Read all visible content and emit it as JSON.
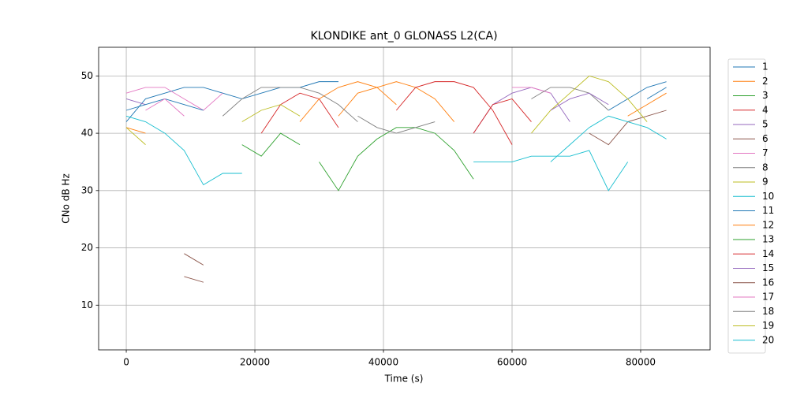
{
  "chart_data": {
    "type": "line",
    "title": "KLONDIKE ant_0 GLONASS L2(CA)",
    "x_label": "Time (s)",
    "y_label": "CNo dB Hz",
    "x": [
      0,
      3000,
      6000,
      9000,
      12000,
      15000,
      18000,
      21000,
      24000,
      27000,
      30000,
      33000,
      36000,
      39000,
      42000,
      45000,
      48000,
      51000,
      54000,
      57000,
      60000,
      63000,
      66000,
      69000,
      72000,
      75000,
      78000,
      81000,
      84000
    ],
    "xlim": [
      -4300,
      90800
    ],
    "xticks": [
      0,
      20000,
      40000,
      60000,
      80000
    ],
    "ylim": [
      2.2,
      55
    ],
    "yticks": [
      10,
      20,
      30,
      40,
      50
    ],
    "grid": true,
    "legend": "outside right",
    "series": [
      {
        "name": "1",
        "color": "#1f77b4",
        "values": [
          42,
          46,
          47,
          48,
          48,
          47,
          46,
          47,
          48,
          48,
          49,
          49,
          null,
          null,
          null,
          null,
          null,
          null,
          null,
          null,
          null,
          null,
          null,
          null,
          null,
          44,
          46,
          48,
          49
        ]
      },
      {
        "name": "2",
        "color": "#ff7f0e",
        "values": [
          41,
          40,
          null,
          null,
          null,
          null,
          null,
          null,
          null,
          null,
          null,
          43,
          47,
          48,
          49,
          48,
          46,
          42,
          null,
          null,
          null,
          null,
          null,
          null,
          null,
          null,
          43,
          45,
          47
        ]
      },
      {
        "name": "3",
        "color": "#2ca02c",
        "values": [
          null,
          null,
          null,
          null,
          null,
          null,
          null,
          null,
          null,
          null,
          35,
          30,
          36,
          39,
          41,
          41,
          40,
          37,
          32,
          null,
          null,
          null,
          null,
          null,
          null,
          null,
          null,
          null,
          null
        ]
      },
      {
        "name": "4",
        "color": "#d62728",
        "values": [
          null,
          null,
          null,
          null,
          null,
          null,
          null,
          40,
          45,
          47,
          46,
          41,
          null,
          null,
          44,
          48,
          49,
          49,
          48,
          44,
          38,
          null,
          null,
          null,
          null,
          null,
          null,
          null,
          null
        ]
      },
      {
        "name": "5",
        "color": "#9467bd",
        "values": [
          46,
          45,
          null,
          null,
          null,
          null,
          null,
          null,
          null,
          null,
          null,
          null,
          null,
          null,
          null,
          null,
          null,
          null,
          40,
          45,
          47,
          48,
          47,
          42,
          null,
          null,
          null,
          null,
          null
        ]
      },
      {
        "name": "6",
        "color": "#8c564b",
        "values": [
          null,
          null,
          null,
          15,
          14,
          null,
          null,
          null,
          null,
          null,
          null,
          null,
          null,
          null,
          null,
          null,
          null,
          null,
          null,
          null,
          null,
          null,
          null,
          null,
          40,
          38,
          42,
          43,
          44
        ]
      },
      {
        "name": "7",
        "color": "#e377c2",
        "values": [
          47,
          48,
          48,
          46,
          44,
          47,
          null,
          null,
          null,
          null,
          null,
          null,
          null,
          null,
          null,
          null,
          null,
          null,
          null,
          null,
          48,
          48,
          47,
          null,
          null,
          null,
          null,
          null,
          null
        ]
      },
      {
        "name": "8",
        "color": "#7f7f7f",
        "values": [
          null,
          null,
          null,
          null,
          null,
          43,
          46,
          48,
          48,
          48,
          47,
          45,
          42,
          null,
          null,
          null,
          null,
          null,
          null,
          null,
          null,
          46,
          48,
          48,
          47,
          44,
          null,
          null,
          null
        ]
      },
      {
        "name": "9",
        "color": "#bcbd22",
        "values": [
          41,
          38,
          null,
          null,
          null,
          null,
          null,
          null,
          null,
          null,
          null,
          null,
          null,
          null,
          null,
          null,
          null,
          null,
          null,
          null,
          null,
          40,
          44,
          47,
          50,
          49,
          46,
          42,
          null
        ]
      },
      {
        "name": "10",
        "color": "#17becf",
        "values": [
          43,
          42,
          40,
          37,
          31,
          33,
          33,
          null,
          null,
          null,
          null,
          null,
          null,
          null,
          null,
          null,
          null,
          null,
          null,
          null,
          null,
          null,
          35,
          38,
          41,
          43,
          42,
          41,
          39
        ]
      },
      {
        "name": "11",
        "color": "#1f77b4",
        "values": [
          44,
          45,
          46,
          45,
          44,
          null,
          null,
          null,
          null,
          null,
          null,
          null,
          null,
          null,
          null,
          null,
          null,
          null,
          null,
          null,
          null,
          null,
          null,
          null,
          null,
          null,
          null,
          46,
          48
        ]
      },
      {
        "name": "12",
        "color": "#ff7f0e",
        "values": [
          null,
          null,
          null,
          null,
          null,
          null,
          null,
          null,
          null,
          42,
          46,
          48,
          49,
          48,
          45,
          null,
          null,
          null,
          null,
          null,
          null,
          null,
          null,
          null,
          null,
          null,
          null,
          null,
          null
        ]
      },
      {
        "name": "13",
        "color": "#2ca02c",
        "values": [
          null,
          null,
          null,
          null,
          null,
          null,
          38,
          36,
          40,
          38,
          null,
          null,
          null,
          null,
          null,
          null,
          null,
          null,
          null,
          null,
          null,
          null,
          null,
          null,
          null,
          null,
          null,
          null,
          null
        ]
      },
      {
        "name": "14",
        "color": "#d62728",
        "values": [
          null,
          null,
          null,
          null,
          null,
          null,
          null,
          null,
          null,
          null,
          null,
          null,
          null,
          null,
          null,
          null,
          null,
          null,
          40,
          45,
          46,
          42,
          null,
          null,
          null,
          null,
          null,
          null,
          null
        ]
      },
      {
        "name": "15",
        "color": "#9467bd",
        "values": [
          null,
          null,
          null,
          null,
          null,
          null,
          null,
          null,
          null,
          null,
          null,
          null,
          null,
          null,
          null,
          null,
          null,
          null,
          null,
          null,
          null,
          null,
          44,
          46,
          47,
          45,
          null,
          null,
          null
        ]
      },
      {
        "name": "16",
        "color": "#8c564b",
        "values": [
          null,
          null,
          null,
          19,
          17,
          null,
          null,
          null,
          null,
          null,
          null,
          null,
          null,
          null,
          null,
          null,
          null,
          null,
          null,
          null,
          null,
          null,
          null,
          null,
          null,
          null,
          null,
          null,
          null
        ]
      },
      {
        "name": "17",
        "color": "#e377c2",
        "values": [
          null,
          44,
          46,
          43,
          null,
          null,
          null,
          null,
          null,
          null,
          null,
          null,
          null,
          null,
          null,
          null,
          null,
          null,
          null,
          null,
          null,
          null,
          null,
          null,
          null,
          null,
          null,
          null,
          null
        ]
      },
      {
        "name": "18",
        "color": "#7f7f7f",
        "values": [
          null,
          null,
          null,
          null,
          null,
          null,
          null,
          null,
          null,
          null,
          null,
          null,
          43,
          41,
          40,
          41,
          42,
          null,
          null,
          null,
          null,
          null,
          null,
          null,
          null,
          null,
          null,
          null,
          null
        ]
      },
      {
        "name": "19",
        "color": "#bcbd22",
        "values": [
          null,
          null,
          null,
          null,
          null,
          null,
          42,
          44,
          45,
          43,
          null,
          null,
          null,
          null,
          null,
          null,
          null,
          null,
          null,
          null,
          null,
          null,
          null,
          null,
          null,
          null,
          null,
          null,
          null
        ]
      },
      {
        "name": "20",
        "color": "#17becf",
        "values": [
          null,
          null,
          null,
          null,
          null,
          null,
          null,
          null,
          null,
          null,
          null,
          null,
          null,
          null,
          null,
          null,
          null,
          null,
          35,
          35,
          35,
          36,
          36,
          36,
          37,
          30,
          35,
          null,
          null
        ]
      }
    ]
  }
}
